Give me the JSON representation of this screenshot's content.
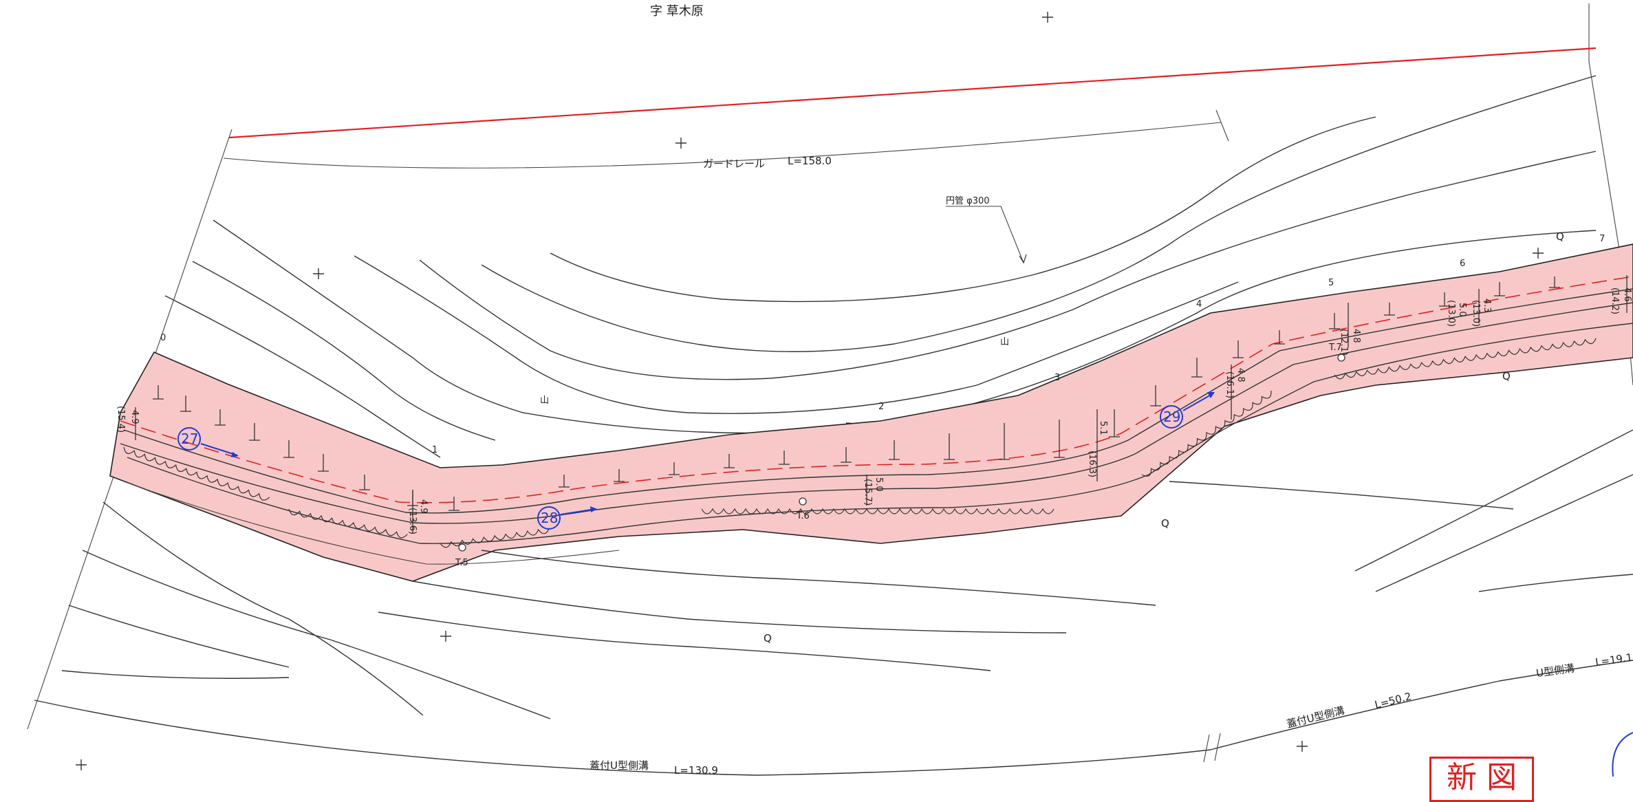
{
  "labels": {
    "area_name": "字 草木原",
    "guardrail": "ガードレール",
    "guardrail_length": "L=158.0",
    "pipe": "円管 φ300",
    "ditch_bottom": "蓋付U型側溝",
    "ditch_bottom_length": "L=130.9",
    "ditch_right": "蓋付U型側溝",
    "ditch_right_length": "L=50.2",
    "u_ditch": "U型側溝",
    "u_ditch_length": "L=19.1",
    "mountain_1": "山",
    "mountain_2": "山",
    "stamp": "新 図"
  },
  "stations": {
    "s27": "27",
    "s28": "28",
    "s29": "29",
    "t5": "T.5",
    "t6": "T.6",
    "t7": "T.7"
  },
  "contour_numbers": [
    "0",
    "1",
    "2",
    "3",
    "4",
    "5",
    "6",
    "7"
  ],
  "widths": {
    "w1": "4.9",
    "w1b": "(15.4)",
    "w2": "4.9",
    "w2b": "(13.6)",
    "w3": "5.0",
    "w3b": "(15.7)",
    "w4": "5.1",
    "w4b": "(16.3)",
    "w5": "4.8",
    "w5b": "(16.1)",
    "w6": "4.8",
    "w6b": "(12.1)",
    "w7": "5.0",
    "w7b": "(13.0)",
    "w8": "4.3",
    "w8b": "(13.0)",
    "w9": "4.6",
    "w9b": "(14.2)"
  },
  "symbols": {
    "q1": "Q",
    "q2": "Q",
    "q3": "Q",
    "q4": "Q"
  },
  "colors": {
    "road_fill": "#f8c8c8",
    "red_line": "#e02020",
    "station_blue": "#1f3bd8",
    "line": "#333333"
  }
}
